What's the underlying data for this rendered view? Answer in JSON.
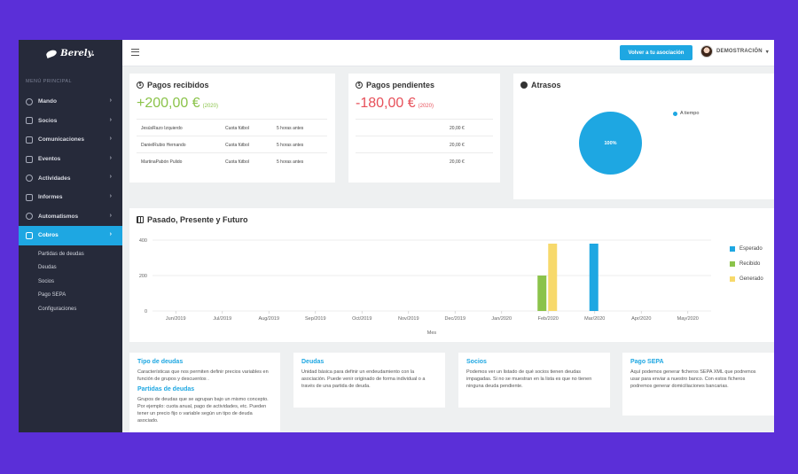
{
  "app": {
    "logo_text": "Berely."
  },
  "sidebar": {
    "heading": "MENÚ PRINCIPAL",
    "items": [
      {
        "label": "Mando",
        "icon": "dashboard-icon"
      },
      {
        "label": "Socios",
        "icon": "users-icon"
      },
      {
        "label": "Comunicaciones",
        "icon": "mail-icon"
      },
      {
        "label": "Eventos",
        "icon": "calendar-icon"
      },
      {
        "label": "Actividades",
        "icon": "globe-icon"
      },
      {
        "label": "Informes",
        "icon": "bar-chart-icon"
      },
      {
        "label": "Automatismos",
        "icon": "clock-icon"
      },
      {
        "label": "Cobros",
        "icon": "money-icon"
      }
    ],
    "subitems": [
      "Partidas de deudas",
      "Deudas",
      "Socios",
      "Pago SEPA",
      "Configuraciones"
    ]
  },
  "topbar": {
    "back_button": "Volver a tu asociación",
    "user_name": "DEMOSTRACIÓN"
  },
  "pagos_recibidos": {
    "title": "Pagos recibidos",
    "amount": "+200,00 €",
    "year": "(2020)",
    "rows": [
      {
        "name": "JesúsRazo Izquierdo",
        "concept": "Cuota fútbol",
        "time": "5 horas antes"
      },
      {
        "name": "DanielRubio Hernando",
        "concept": "Cuota fútbol",
        "time": "5 horas antes"
      },
      {
        "name": "MartinaPabón Pulido",
        "concept": "Cuota fútbol",
        "time": "5 horas antes"
      }
    ]
  },
  "pagos_pendientes": {
    "title": "Pagos pendientes",
    "amount": "-180,00 €",
    "year": "(2020)",
    "rows": [
      {
        "value": "20,00 €"
      },
      {
        "value": "20,00 €"
      },
      {
        "value": "20,00 €"
      }
    ]
  },
  "atrasos": {
    "title": "Atrasos",
    "legend": "A tiempo",
    "pie_label": "100%",
    "color": "#1ea7e2"
  },
  "chart_card": {
    "title": "Pasado, Presente y Futuro"
  },
  "chart_data": {
    "type": "bar",
    "categories": [
      "Jun/2019",
      "Jul/2019",
      "Aug/2019",
      "Sep/2019",
      "Oct/2019",
      "Nov/2019",
      "Dec/2019",
      "Jan/2020",
      "Feb/2020",
      "Mar/2020",
      "Apr/2020",
      "May/2020"
    ],
    "series": [
      {
        "name": "Esperado",
        "color": "#1ea7e2",
        "values": [
          0,
          0,
          0,
          0,
          0,
          0,
          0,
          0,
          0,
          380,
          0,
          0
        ]
      },
      {
        "name": "Recibido",
        "color": "#8bc34a",
        "values": [
          0,
          0,
          0,
          0,
          0,
          0,
          0,
          0,
          200,
          0,
          0,
          0
        ]
      },
      {
        "name": "Generado",
        "color": "#f7d96b",
        "values": [
          0,
          0,
          0,
          0,
          0,
          0,
          0,
          0,
          380,
          0,
          0,
          0
        ]
      }
    ],
    "yticks": [
      "0",
      "200",
      "400"
    ],
    "ylim": [
      0,
      400
    ],
    "xlabel": "Mes",
    "legend_position": "right"
  },
  "info_cards": [
    {
      "title": "Tipo de deudas",
      "text": "Características que nos permiten definir precios variables en función de grupos y descuentos .",
      "title2": "Partidas de deudas",
      "text2": "Grupos de deudas que se agrupan bajo un mismo concepto. Por ejemplo: cuota anual, pago de actividades, etc. Pueden tener un precio fijo o variable según un tipo de deuda asociado."
    },
    {
      "title": "Deudas",
      "text": "Unidad básica para definir un endeudamiento con la asociación. Puede venir originado de forma individual o a través de una partida de deuda."
    },
    {
      "title": "Socios",
      "text": "Podemos ver un listado de qué socios tienen deudas impagadas. Si no se muestran en la lista es que no tienen ninguna deuda pendiente."
    },
    {
      "title": "Pago SEPA",
      "text": "Aquí podemos generar ficheros SEPA XML que podremos usar para enviar a nuestro banco. Con estos ficheros podremos generar domiciliaciones bancarias."
    }
  ]
}
